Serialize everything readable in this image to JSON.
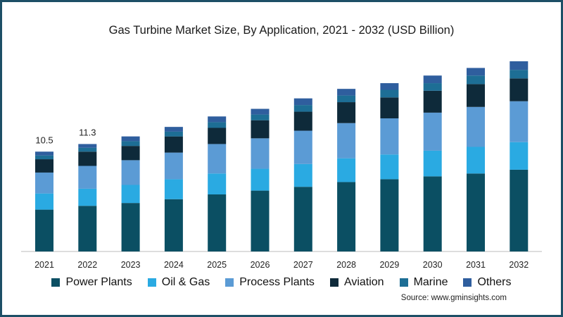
{
  "chart_data": {
    "type": "bar",
    "stacked": true,
    "title": "Gas Turbine Market Size, By Application, 2021 - 2032 (USD Billion)",
    "xlabel": "",
    "ylabel": "",
    "categories": [
      "2021",
      "2022",
      "2023",
      "2024",
      "2025",
      "2026",
      "2027",
      "2028",
      "2029",
      "2030",
      "2031",
      "2032"
    ],
    "ylim": [
      0,
      22
    ],
    "grid": false,
    "legend_position": "bottom",
    "data_labels": [
      {
        "category": "2021",
        "text": "10.5"
      },
      {
        "category": "2022",
        "text": "11.3"
      }
    ],
    "series": [
      {
        "name": "Power Plants",
        "color": "#0b4f63",
        "values": [
          4.4,
          4.8,
          5.1,
          5.5,
          6.0,
          6.4,
          6.8,
          7.3,
          7.6,
          7.9,
          8.2,
          8.6
        ]
      },
      {
        "name": "Oil & Gas",
        "color": "#2aaae2",
        "values": [
          1.7,
          1.8,
          1.9,
          2.1,
          2.2,
          2.3,
          2.4,
          2.5,
          2.6,
          2.7,
          2.8,
          2.9
        ]
      },
      {
        "name": "Process Plants",
        "color": "#5b9bd5",
        "values": [
          2.2,
          2.4,
          2.6,
          2.8,
          3.1,
          3.2,
          3.5,
          3.7,
          3.8,
          4.0,
          4.2,
          4.3
        ]
      },
      {
        "name": "Aviation",
        "color": "#0e2a3a",
        "values": [
          1.4,
          1.5,
          1.5,
          1.7,
          1.7,
          1.9,
          2.0,
          2.2,
          2.2,
          2.3,
          2.4,
          2.4
        ]
      },
      {
        "name": "Marine",
        "color": "#1d6e95",
        "values": [
          0.4,
          0.4,
          0.5,
          0.5,
          0.6,
          0.6,
          0.7,
          0.7,
          0.8,
          0.8,
          0.9,
          0.9
        ]
      },
      {
        "name": "Others",
        "color": "#2f5e9e",
        "values": [
          0.4,
          0.4,
          0.5,
          0.5,
          0.6,
          0.6,
          0.7,
          0.7,
          0.7,
          0.8,
          0.8,
          0.9
        ]
      }
    ]
  },
  "source_text": "Source: www.gminsights.com"
}
